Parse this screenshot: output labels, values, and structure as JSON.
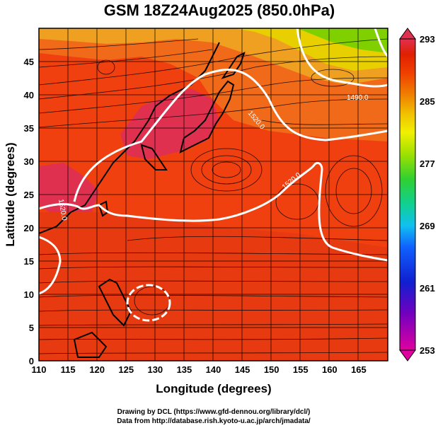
{
  "title": "GSM 18Z24Aug2025 (850.0hPa)",
  "x_axis": {
    "label": "Longitude (degrees)",
    "range": [
      110,
      170
    ],
    "ticks": [
      "110",
      "115",
      "120",
      "125",
      "130",
      "135",
      "140",
      "145",
      "150",
      "155",
      "160",
      "165"
    ],
    "tick_values": [
      110,
      115,
      120,
      125,
      130,
      135,
      140,
      145,
      150,
      155,
      160,
      165
    ]
  },
  "y_axis": {
    "label": "Latitude (degrees)",
    "range": [
      0,
      50
    ],
    "ticks": [
      "0",
      "5",
      "10",
      "15",
      "20",
      "25",
      "30",
      "35",
      "40",
      "45"
    ],
    "tick_values": [
      0,
      5,
      10,
      15,
      20,
      25,
      30,
      35,
      40,
      45
    ]
  },
  "colorbar": {
    "min": 253,
    "max": 293,
    "tick_labels": [
      "293",
      "285",
      "277",
      "269",
      "261",
      "253"
    ],
    "tick_values": [
      293,
      285,
      277,
      269,
      261,
      253
    ],
    "colors": [
      "#e000a0",
      "#7000c0",
      "#1020d0",
      "#1060ff",
      "#10c0f0",
      "#10d090",
      "#30d030",
      "#a0e000",
      "#f0f000",
      "#f0c000",
      "#f08000",
      "#f04000",
      "#e02000",
      "#e03050"
    ]
  },
  "contour_labels": [
    "1520.0",
    "1490.0",
    "1520.0",
    "1520.0"
  ],
  "credits": {
    "line1": "Drawing by DCL (https://www.gfd-dennou.org/library/dcl/)",
    "line2": "Data from http://database.rish.kyoto-u.ac.jp/arch/jmadata/"
  },
  "map_colors": {
    "warm": "#f04010",
    "hot": "#e03050",
    "orange": "#f08020",
    "yellow": "#e8d000",
    "green": "#80d000"
  }
}
